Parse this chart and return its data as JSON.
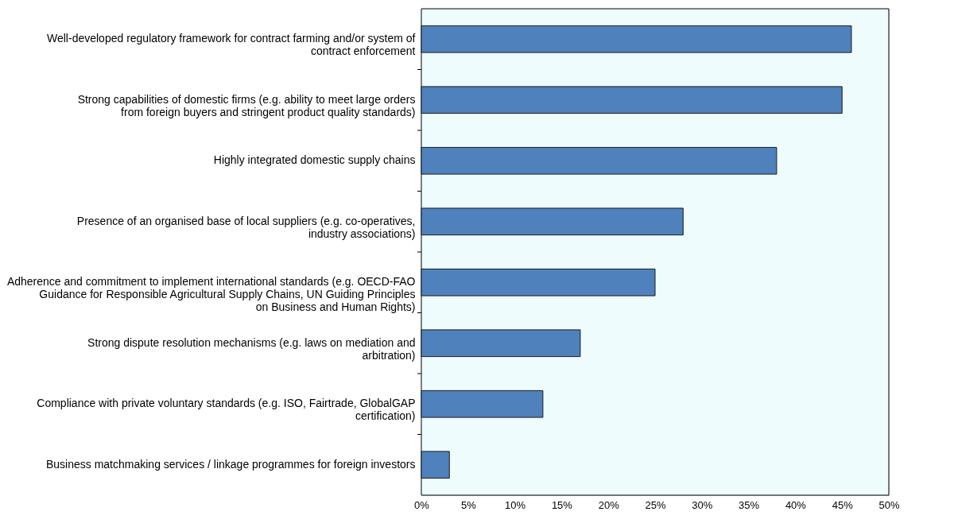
{
  "chart_data": {
    "type": "bar",
    "orientation": "horizontal",
    "categories": [
      "Well-developed regulatory framework for contract farming and/or system of contract enforcement",
      "Strong capabilities of domestic firms (e.g. ability to meet large orders from foreign buyers and stringent product quality standards)",
      "Highly integrated domestic supply chains",
      "Presence of an organised base of local suppliers (e.g. co-operatives, industry associations)",
      "Adherence and commitment to implement international standards (e.g. OECD-FAO Guidance for Responsible Agricultural Supply Chains, UN Guiding Principles on Business and Human Rights)",
      "Strong dispute resolution mechanisms (e.g. laws on mediation and arbitration)",
      "Compliance with private voluntary standards (e.g. ISO, Fairtrade, GlobalGAP certification)",
      "Business matchmaking services / linkage programmes for foreign investors"
    ],
    "values": [
      46,
      45,
      38,
      28,
      25,
      17,
      13,
      3
    ],
    "color": "#4f81bd",
    "xlim": [
      0,
      50
    ],
    "xticks": [
      {
        "value": 0,
        "label": "0%"
      },
      {
        "value": 5,
        "label": "5%"
      },
      {
        "value": 10,
        "label": "10%"
      },
      {
        "value": 15,
        "label": "15%"
      },
      {
        "value": 20,
        "label": "20%"
      },
      {
        "value": 25,
        "label": "25%"
      },
      {
        "value": 30,
        "label": "30%"
      },
      {
        "value": 35,
        "label": "35%"
      },
      {
        "value": 40,
        "label": "40%"
      },
      {
        "value": 45,
        "label": "45%"
      },
      {
        "value": 50,
        "label": "50%"
      }
    ]
  }
}
